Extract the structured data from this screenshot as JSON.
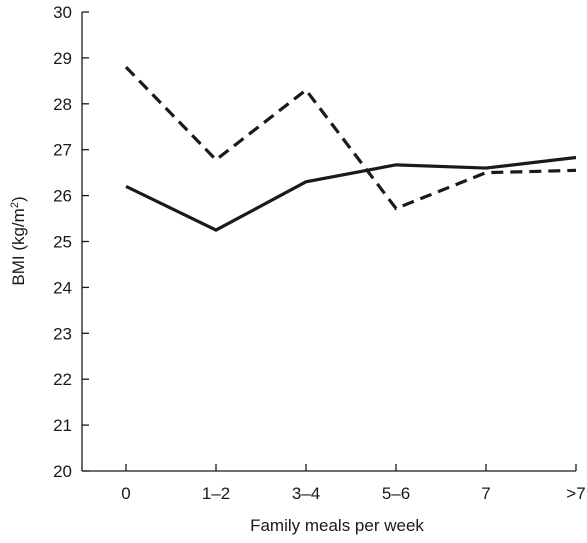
{
  "chart_data": {
    "type": "line",
    "categories": [
      "0",
      "1–2",
      "3–4",
      "5–6",
      "7",
      ">7"
    ],
    "xlabel": "Family meals per week",
    "ylabel_main": "BMI (kg/m",
    "ylabel_sup": "2",
    "ylabel_close": ")",
    "ylim": [
      20,
      30
    ],
    "yticks": [
      "20",
      "21",
      "22",
      "23",
      "24",
      "25",
      "26",
      "27",
      "28",
      "29",
      "30"
    ],
    "grid": false,
    "legend": "none",
    "series": [
      {
        "style": "solid",
        "color": "#1a1a1a",
        "values": [
          26.2,
          25.25,
          26.3,
          26.67,
          26.6,
          26.83
        ]
      },
      {
        "style": "dashed",
        "color": "#1a1a1a",
        "values": [
          28.8,
          26.78,
          28.3,
          25.72,
          26.5,
          26.55
        ]
      }
    ]
  }
}
